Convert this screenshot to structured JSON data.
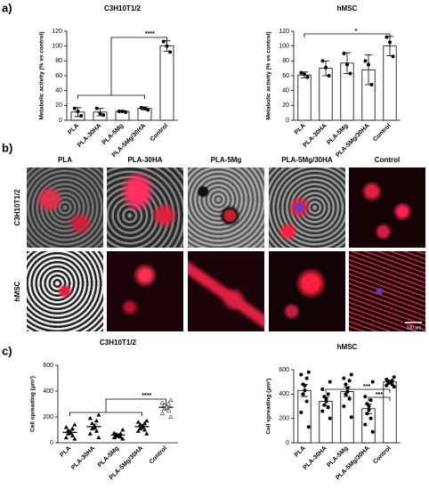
{
  "panel_labels": [
    "a)",
    "b)",
    "c)"
  ],
  "microscopy": {
    "columns": [
      "PLA",
      "PLA-30HA",
      "PLA-5Mg",
      "PLA-5Mg/30HA",
      "Control"
    ],
    "rows": [
      "C3H10T1/2",
      "hMSC"
    ],
    "scale_bar": "100 μm"
  },
  "chart_data": [
    {
      "type": "bar",
      "title": "C3H10T1/2",
      "ylabel": "Metabolic activity (% vs control)",
      "categories": [
        "PLA",
        "PLA-30HA",
        "PLA-5Mg",
        "PLA-5Mg/30HA",
        "Control"
      ],
      "values": [
        11,
        11,
        12,
        16,
        100
      ],
      "errors": [
        6,
        5,
        1,
        2,
        7
      ],
      "points": [
        [
          6,
          12,
          16
        ],
        [
          7,
          9,
          16
        ],
        [
          11,
          12,
          12
        ],
        [
          14,
          16,
          17
        ],
        [
          92,
          100,
          106
        ]
      ],
      "color": "#ffffff",
      "marker": "circle",
      "ylim": [
        0,
        120
      ],
      "yticks": [
        0,
        20,
        40,
        60,
        80,
        100,
        120
      ],
      "annotations": [
        "****"
      ]
    },
    {
      "type": "bar",
      "title": "hMSC",
      "ylabel": "Metabolic activity (% vs control)",
      "categories": [
        "PLA",
        "PLA-30HA",
        "PLA-5Mg",
        "PLA-5Mg/30HA",
        "Control"
      ],
      "values": [
        61,
        70,
        77,
        68,
        100
      ],
      "errors": [
        4,
        10,
        14,
        20,
        13
      ],
      "points": [
        [
          58,
          62,
          64
        ],
        [
          60,
          71,
          80
        ],
        [
          63,
          75,
          90
        ],
        [
          48,
          75,
          80
        ],
        [
          86,
          105,
          112
        ]
      ],
      "color": "#ffffff",
      "marker": "circle",
      "ylim": [
        0,
        120
      ],
      "yticks": [
        0,
        20,
        40,
        60,
        80,
        100,
        120
      ],
      "annotations": [
        "*"
      ]
    },
    {
      "type": "strip",
      "title": "C3H10T1/2",
      "ylabel": "Cell spreading (μm²)",
      "categories": [
        "PLA",
        "PLA-30HA",
        "PLA-5Mg",
        "PLA-5Mg/30HA",
        "Control"
      ],
      "values": [
        80,
        125,
        60,
        125,
        275
      ],
      "errors": [
        15,
        20,
        8,
        12,
        15
      ],
      "points": [
        [
          30,
          40,
          55,
          70,
          75,
          85,
          95,
          110,
          120,
          140
        ],
        [
          40,
          70,
          90,
          110,
          120,
          130,
          150,
          170,
          190,
          215
        ],
        [
          30,
          40,
          45,
          50,
          55,
          60,
          65,
          70,
          75,
          100
        ],
        [
          70,
          90,
          100,
          110,
          120,
          130,
          140,
          150,
          160,
          170
        ],
        [
          200,
          230,
          250,
          260,
          270,
          280,
          290,
          300,
          310,
          330
        ]
      ],
      "color": "#000000",
      "marker": "triangle",
      "ylim": [
        0,
        600
      ],
      "yticks": [
        0,
        200,
        400,
        600
      ],
      "annotations": [
        "****"
      ]
    },
    {
      "type": "bar",
      "title": "hMSC",
      "ylabel": "Cell spreading (μm²)",
      "categories": [
        "PLA",
        "PLA-30HA",
        "PLA-5Mg",
        "PLA-5Mg/30HA",
        "Control"
      ],
      "values": [
        430,
        340,
        420,
        280,
        500
      ],
      "errors": [
        50,
        35,
        40,
        40,
        10
      ],
      "points": [
        [
          130,
          250,
          340,
          400,
          430,
          470,
          480,
          530,
          560,
          580
        ],
        [
          200,
          260,
          290,
          310,
          340,
          360,
          380,
          400,
          440,
          500
        ],
        [
          210,
          300,
          360,
          400,
          420,
          450,
          480,
          510,
          530,
          560
        ],
        [
          90,
          150,
          200,
          240,
          270,
          300,
          320,
          350,
          380,
          500
        ],
        [
          460,
          470,
          480,
          490,
          495,
          500,
          505,
          510,
          520,
          540
        ]
      ],
      "color": "#ffffff",
      "marker": "circle",
      "ylim": [
        0,
        600
      ],
      "yticks": [
        0,
        200,
        400,
        600
      ],
      "annotations": [
        "***",
        "***"
      ]
    }
  ]
}
